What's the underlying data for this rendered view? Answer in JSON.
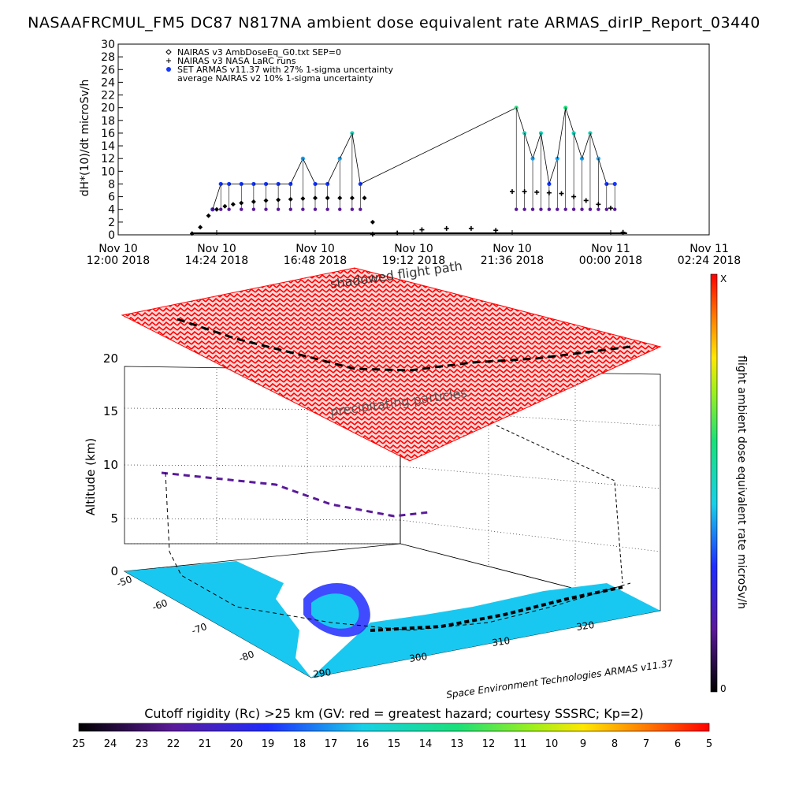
{
  "title": "NASAAFRCMUL_FM5 DC87 N817NA ambient dose equivalent rate ARMAS_dirIP_Report_03440",
  "chart_data": [
    {
      "type": "line",
      "ylabel": "dH*(10)/dt microSv/h",
      "ylim": [
        0,
        30
      ],
      "y_ticks": [
        0,
        2,
        4,
        6,
        8,
        10,
        12,
        14,
        16,
        18,
        20,
        22,
        24,
        26,
        28,
        30
      ],
      "x_ticks": [
        {
          "l1": "Nov 10",
          "l2": "12:00 2018"
        },
        {
          "l1": "Nov 10",
          "l2": "14:24 2018"
        },
        {
          "l1": "Nov 10",
          "l2": "16:48 2018"
        },
        {
          "l1": "Nov 10",
          "l2": "19:12 2018"
        },
        {
          "l1": "Nov 10",
          "l2": "21:36 2018"
        },
        {
          "l1": "Nov 11",
          "l2": "00:00 2018"
        },
        {
          "l1": "Nov 11",
          "l2": "02:24 2018"
        }
      ],
      "legend": [
        {
          "symbol": "diamond",
          "label": "NAIRAS v3 AmbDoseEq_G0.txt SEP=0"
        },
        {
          "symbol": "plus",
          "label": "NAIRAS v3 NASA LaRC runs"
        },
        {
          "symbol": "dot",
          "label": "SET ARMAS v11.37 with 27% 1-sigma uncertainty"
        },
        {
          "symbol": "none",
          "label": "average NAIRAS v2 10% 1-sigma uncertainty"
        }
      ],
      "legend_position": "top-left",
      "series": [
        {
          "name": "NAIRAS v3 AmbDoseEq_G0.txt SEP=0",
          "marker": "diamond",
          "x_hours": [
            13.8,
            14.0,
            14.2,
            14.4,
            14.6,
            14.8,
            15.0,
            15.3,
            15.6,
            15.9,
            16.2,
            16.5,
            16.8,
            17.1,
            17.4,
            17.7,
            18.0,
            18.2
          ],
          "y": [
            0.2,
            1.2,
            3.0,
            4.0,
            4.5,
            4.8,
            5.0,
            5.2,
            5.4,
            5.5,
            5.6,
            5.7,
            5.8,
            5.8,
            5.8,
            5.8,
            5.8,
            2.0
          ]
        },
        {
          "name": "NAIRAS v3 NASA LaRC runs",
          "marker": "plus",
          "x_hours": [
            18.2,
            18.8,
            19.4,
            20.0,
            20.6,
            21.2,
            21.6,
            21.9,
            22.2,
            22.5,
            22.8,
            23.1,
            23.4,
            23.7,
            24.0,
            24.3
          ],
          "y": [
            0.1,
            0.3,
            0.8,
            1.0,
            1.0,
            0.7,
            6.8,
            6.8,
            6.7,
            6.6,
            6.5,
            6.0,
            5.4,
            4.8,
            4.2,
            0.4
          ]
        },
        {
          "name": "SET ARMAS v11.37 with 27% 1-sigma uncertainty",
          "marker": "dot",
          "x_hours": [
            14.3,
            14.5,
            14.7,
            15.0,
            15.3,
            15.6,
            15.9,
            16.2,
            16.5,
            16.8,
            17.1,
            17.4,
            17.7,
            17.9,
            21.7,
            21.9,
            22.1,
            22.3,
            22.5,
            22.7,
            22.9,
            23.1,
            23.3,
            23.5,
            23.7,
            23.9,
            24.1
          ],
          "y": [
            4,
            8,
            8,
            8,
            8,
            8,
            8,
            8,
            12,
            8,
            8,
            12,
            16,
            8,
            20,
            16,
            12,
            16,
            8,
            12,
            20,
            16,
            12,
            16,
            12,
            8,
            8
          ]
        }
      ]
    },
    {
      "type": "scatter",
      "zlabel": "Altitude (km)",
      "z_ticks": [
        "0",
        "5",
        "10",
        "15",
        "20"
      ],
      "lat_ticks": [
        "-50",
        "-60",
        "-70",
        "-80"
      ],
      "lon_ticks": [
        "290",
        "300",
        "310",
        "320"
      ],
      "annotations": [
        {
          "text": "shadowed flight path"
        },
        {
          "text": "precipitating particles"
        },
        {
          "text": "Space Environment Technologies ARMAS v11.37"
        }
      ],
      "colorbar": {
        "label": "flight ambient dose equivalent rate microSv/h",
        "top_label": "X",
        "bottom_label": "0"
      }
    },
    {
      "type": "heatmap",
      "title": "Cutoff rigidity (Rc) >25 km (GV: red = greatest hazard; courtesy SSSRC; Kp=2)",
      "tick_labels": [
        "25",
        "24",
        "23",
        "22",
        "21",
        "20",
        "19",
        "18",
        "17",
        "16",
        "15",
        "14",
        "13",
        "12",
        "11",
        "10",
        "9",
        "8",
        "7",
        "6",
        "5"
      ]
    }
  ],
  "colors": {
    "armas_blue": "#1437ff",
    "nairas_black": "#000000",
    "precip_red": "#ff0000",
    "ocean": "#19c8f0"
  }
}
